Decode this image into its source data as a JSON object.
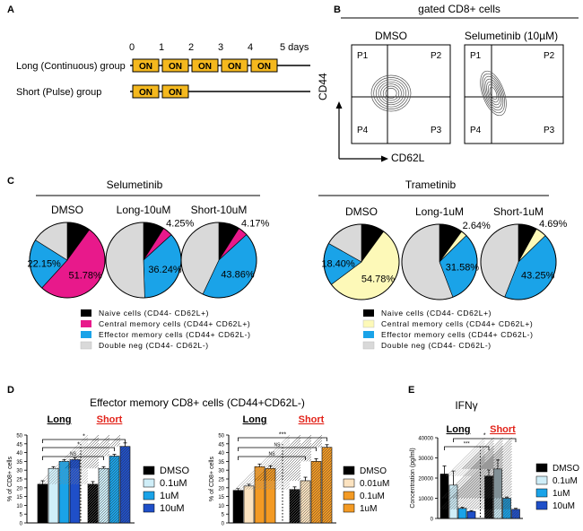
{
  "panel_letters": {
    "a": "A",
    "b": "B",
    "c": "C",
    "d": "D",
    "e": "E"
  },
  "colors": {
    "on_box": "#f4b81e",
    "black": "#000000",
    "magenta": "#e8198b",
    "blue": "#1aa3e8",
    "grey": "#d9d9d9",
    "pale_yellow": "#fdf9b8",
    "light_blue": "#cfeef8",
    "orange": "#f39a24",
    "dark_blue": "#1f4fc8",
    "light_orange": "#fce3c0",
    "red": "#e2231a"
  },
  "panel_a": {
    "day_ticks": [
      "0",
      "1",
      "2",
      "3",
      "4",
      "5 days"
    ],
    "long_label": "Long (Continuous) group",
    "short_label": "Short (Pulse) group",
    "on_label": "ON",
    "long_on_count": 5,
    "short_on_count": 2
  },
  "panel_b": {
    "title": "gated CD8+ cells",
    "plots": [
      "DMSO",
      "Selumetinib (10µM)"
    ],
    "quadrants": [
      "P1",
      "P2",
      "P4",
      "P3"
    ],
    "y_axis": "CD44",
    "x_axis": "CD62L"
  },
  "chart_data": [
    {
      "type": "pie",
      "group": "Selumetinib",
      "legend": [
        "Naive cells (CD44- CD62L+)",
        "Central memory cells (CD44+ CD62L+)",
        "Effector memory cells (CD44+ CD62L-)",
        "Double neg (CD44- CD62L-)"
      ],
      "pies": [
        {
          "name": "DMSO",
          "slices": [
            {
              "cat": "naive",
              "value": 10.0
            },
            {
              "cat": "central",
              "value": 51.78
            },
            {
              "cat": "effector",
              "value": 22.15
            },
            {
              "cat": "double",
              "value": 16.07
            }
          ],
          "labels": [
            {
              "text": "22.15%",
              "slice": 2
            },
            {
              "text": "51.78%",
              "slice": 1
            }
          ]
        },
        {
          "name": "Long-10uM",
          "slices": [
            {
              "cat": "naive",
              "value": 9.0
            },
            {
              "cat": "central",
              "value": 4.25
            },
            {
              "cat": "effector",
              "value": 36.24
            },
            {
              "cat": "double",
              "value": 50.51
            }
          ],
          "labels": [
            {
              "text": "4.25%",
              "slice": 1
            },
            {
              "text": "36.24%",
              "slice": 2
            }
          ]
        },
        {
          "name": "Short-10uM",
          "slices": [
            {
              "cat": "naive",
              "value": 9.0
            },
            {
              "cat": "central",
              "value": 4.17
            },
            {
              "cat": "effector",
              "value": 43.86
            },
            {
              "cat": "double",
              "value": 42.97
            }
          ],
          "labels": [
            {
              "text": "4.17%",
              "slice": 1
            },
            {
              "text": "43.86%",
              "slice": 2
            }
          ]
        }
      ]
    },
    {
      "type": "pie",
      "group": "Trametinib",
      "legend": [
        "Naive cells (CD44- CD62L+)",
        "Central memory cells (CD44+ CD62L+)",
        "Effector memory cells (CD44+ CD62L-)",
        "Double neg (CD44- CD62L-)"
      ],
      "pies": [
        {
          "name": "DMSO",
          "slices": [
            {
              "cat": "naive",
              "value": 10.0
            },
            {
              "cat": "central",
              "value": 54.78
            },
            {
              "cat": "effector",
              "value": 18.4
            },
            {
              "cat": "double",
              "value": 16.82
            }
          ],
          "labels": [
            {
              "text": "18.40%",
              "slice": 2
            },
            {
              "text": "54.78%",
              "slice": 1
            }
          ]
        },
        {
          "name": "Long-1uM",
          "slices": [
            {
              "cat": "naive",
              "value": 10.0
            },
            {
              "cat": "central",
              "value": 2.64
            },
            {
              "cat": "effector",
              "value": 31.58
            },
            {
              "cat": "double",
              "value": 55.78
            }
          ],
          "labels": [
            {
              "text": "2.64%",
              "slice": 1
            },
            {
              "text": "31.58%",
              "slice": 2
            }
          ]
        },
        {
          "name": "Short-1uM",
          "slices": [
            {
              "cat": "naive",
              "value": 8.0
            },
            {
              "cat": "central",
              "value": 4.69
            },
            {
              "cat": "effector",
              "value": 43.25
            },
            {
              "cat": "double",
              "value": 44.06
            }
          ],
          "labels": [
            {
              "text": "4.69%",
              "slice": 1
            },
            {
              "text": "43.25%",
              "slice": 2
            }
          ]
        }
      ]
    },
    {
      "type": "bar",
      "panel": "D-left",
      "ylabel": "% of CD8+ cells",
      "ylim": [
        0,
        50
      ],
      "yticks": [
        0,
        5,
        10,
        15,
        20,
        25,
        30,
        35,
        40,
        45,
        50
      ],
      "group_labels": [
        "Long",
        "Short"
      ],
      "series": [
        {
          "name": "DMSO",
          "long": 22,
          "long_err": 2.0,
          "short": 22,
          "short_err": 1.5,
          "color": "#000000"
        },
        {
          "name": "0.1uM",
          "long": 31,
          "long_err": 1.0,
          "short": 31,
          "short_err": 1.0,
          "color": "#cfeef8"
        },
        {
          "name": "1uM",
          "long": 35,
          "long_err": 1.0,
          "short": 38,
          "short_err": 1.0,
          "color": "#1aa3e8"
        },
        {
          "name": "10uM",
          "long": 36,
          "long_err": 1.0,
          "short": 43.5,
          "short_err": 2.0,
          "color": "#1f4fc8"
        }
      ],
      "significance": [
        "*",
        "*",
        "NS"
      ]
    },
    {
      "type": "bar",
      "panel": "D-right",
      "ylabel": "% of CD8+ cells",
      "ylim": [
        0,
        50
      ],
      "yticks": [
        0,
        5,
        10,
        15,
        20,
        25,
        30,
        35,
        40,
        45,
        50
      ],
      "group_labels": [
        "Long",
        "Short"
      ],
      "series": [
        {
          "name": "DMSO",
          "long": 18.5,
          "long_err": 1.0,
          "short": 19,
          "short_err": 1.5,
          "color": "#000000"
        },
        {
          "name": "0.01uM",
          "long": 21,
          "long_err": 1.0,
          "short": 24,
          "short_err": 2.0,
          "color": "#fce3c0"
        },
        {
          "name": "0.1uM",
          "long": 32,
          "long_err": 1.5,
          "short": 35,
          "short_err": 1.5,
          "color": "#f39a24"
        },
        {
          "name": "1uM",
          "long": 31,
          "long_err": 1.5,
          "short": 43,
          "short_err": 1.5,
          "color": "#f39a24"
        }
      ],
      "significance": [
        "***",
        "NS",
        "NS"
      ]
    },
    {
      "type": "bar",
      "panel": "E",
      "title": "IFNγ",
      "ylabel": "Concentration (pg/ml)",
      "ylim": [
        0,
        40000
      ],
      "yticks": [
        0,
        10000,
        20000,
        30000,
        40000
      ],
      "group_labels": [
        "Long",
        "Short"
      ],
      "series": [
        {
          "name": "DMSO",
          "long": 22000,
          "long_err": 4000,
          "short": 21000,
          "short_err": 3000,
          "color": "#000000"
        },
        {
          "name": "0.1uM",
          "long": 16500,
          "long_err": 7000,
          "short": 24500,
          "short_err": 4500,
          "color": "#cfeef8"
        },
        {
          "name": "1uM",
          "long": 5000,
          "long_err": 500,
          "short": 10000,
          "short_err": 600,
          "color": "#1aa3e8"
        },
        {
          "name": "10uM",
          "long": 3500,
          "long_err": 400,
          "short": 4500,
          "short_err": 500,
          "color": "#1f4fc8"
        }
      ],
      "significance": [
        "*",
        "***"
      ]
    }
  ],
  "panel_d_title": "Effector memory CD8+ cells (CD44+CD62L-)"
}
